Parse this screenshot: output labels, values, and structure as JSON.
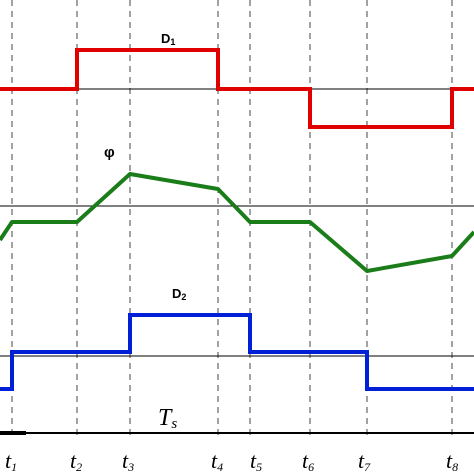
{
  "waveforms": {
    "d1": {
      "label": "D",
      "sub": "1",
      "color": "#e00000"
    },
    "phi": {
      "label": "φ",
      "color": "#1a7d1a"
    },
    "d2": {
      "label": "D",
      "sub": "2",
      "color": "#0020d8"
    }
  },
  "period_label": {
    "main": "T",
    "sub": "s"
  },
  "time_markers": [
    {
      "main": "t",
      "sub": "1"
    },
    {
      "main": "t",
      "sub": "2"
    },
    {
      "main": "t",
      "sub": "3"
    },
    {
      "main": "t",
      "sub": "4"
    },
    {
      "main": "t",
      "sub": "5"
    },
    {
      "main": "t",
      "sub": "6"
    },
    {
      "main": "t",
      "sub": "7"
    },
    {
      "main": "t",
      "sub": "8"
    }
  ]
}
